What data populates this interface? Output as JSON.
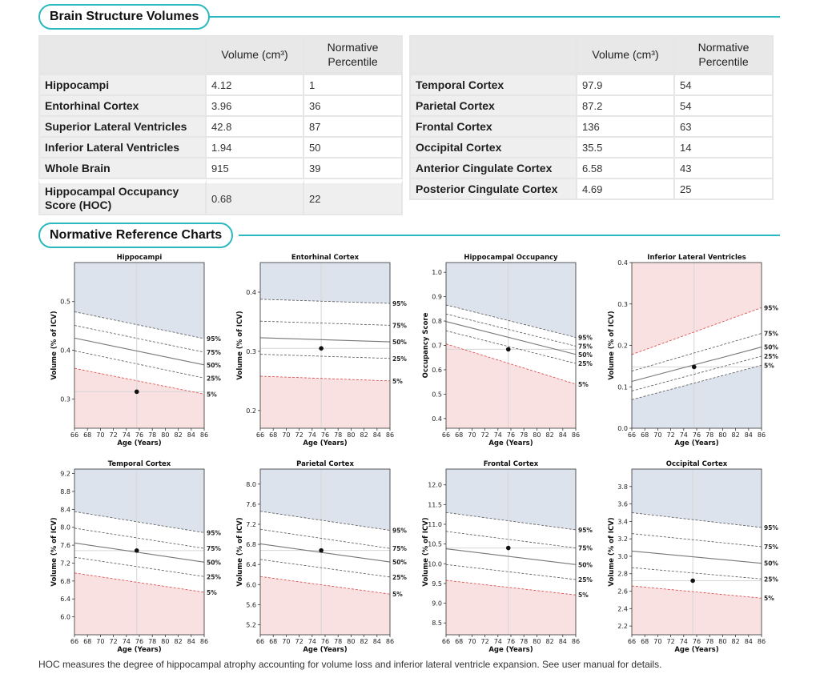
{
  "section1": {
    "title": "Brain Structure Volumes"
  },
  "left_table": {
    "headers": [
      "",
      "Volume (cm³)",
      "Normative Percentile"
    ],
    "rows": [
      {
        "name": "Hippocampi",
        "volume": "4.12",
        "percentile": "1"
      },
      {
        "name": "Entorhinal Cortex",
        "volume": "3.96",
        "percentile": "36"
      },
      {
        "name": "Superior Lateral Ventricles",
        "volume": "42.8",
        "percentile": "87"
      },
      {
        "name": "Inferior Lateral Ventricles",
        "volume": "1.94",
        "percentile": "50"
      },
      {
        "name": "Whole Brain",
        "volume": "915",
        "percentile": "39"
      }
    ],
    "hoc": {
      "name": "Hippocampal Occupancy Score (HOC)",
      "volume": "0.68",
      "percentile": "22"
    }
  },
  "right_table": {
    "headers": [
      "",
      "Volume (cm³)",
      "Normative Percentile"
    ],
    "rows": [
      {
        "name": "Temporal Cortex",
        "volume": "97.9",
        "percentile": "54"
      },
      {
        "name": "Parietal Cortex",
        "volume": "87.2",
        "percentile": "54"
      },
      {
        "name": "Frontal Cortex",
        "volume": "136",
        "percentile": "63"
      },
      {
        "name": "Occipital Cortex",
        "volume": "35.5",
        "percentile": "14"
      },
      {
        "name": "Anterior Cingulate Cortex",
        "volume": "6.58",
        "percentile": "43"
      },
      {
        "name": "Posterior Cingulate Cortex",
        "volume": "4.69",
        "percentile": "25"
      }
    ]
  },
  "section2": {
    "title": "Normative Reference Charts"
  },
  "colors": {
    "accent": "#2bb9c0",
    "blue_zone": "#dde3ed",
    "red_zone": "#f9e1e1",
    "low_percentile": "#b2185b"
  },
  "chart_data": [
    {
      "type": "line",
      "title": "Hippocampi",
      "xlabel": "Age (Years)",
      "ylabel": "Volume (% of ICV)",
      "xlim": [
        66,
        86
      ],
      "ylim": [
        0.24,
        0.58
      ],
      "yticks": [
        0.3,
        0.4,
        0.5
      ],
      "ytick_labels": [
        "0.3",
        "0.4",
        "0.5"
      ],
      "xticks": [
        66,
        68,
        70,
        72,
        74,
        76,
        78,
        80,
        82,
        84,
        86
      ],
      "percentiles": [
        "95%",
        "75%",
        "50%",
        "25%",
        "5%"
      ],
      "p95": [
        0.479,
        0.424
      ],
      "p75": [
        0.451,
        0.396
      ],
      "p50": [
        0.425,
        0.37
      ],
      "p25": [
        0.399,
        0.343
      ],
      "p5": [
        0.363,
        0.31
      ],
      "high_zone": "blue",
      "low_zone": "red",
      "patient": {
        "age": 75.6,
        "value": 0.315
      }
    },
    {
      "type": "line",
      "title": "Entorhinal Cortex",
      "xlabel": "Age (Years)",
      "ylabel": "Volume (% of ICV)",
      "xlim": [
        66,
        86
      ],
      "ylim": [
        0.17,
        0.45
      ],
      "yticks": [
        0.2,
        0.3,
        0.4
      ],
      "ytick_labels": [
        "0.2",
        "0.3",
        "0.4"
      ],
      "xticks": [
        66,
        68,
        70,
        72,
        74,
        76,
        78,
        80,
        82,
        84,
        86
      ],
      "percentiles": [
        "95%",
        "75%",
        "50%",
        "25%",
        "5%"
      ],
      "p95": [
        0.388,
        0.381
      ],
      "p75": [
        0.351,
        0.344
      ],
      "p50": [
        0.323,
        0.316
      ],
      "p25": [
        0.295,
        0.288
      ],
      "p5": [
        0.258,
        0.25
      ],
      "high_zone": "blue",
      "low_zone": "red",
      "patient": {
        "age": 75.4,
        "value": 0.305
      }
    },
    {
      "type": "line",
      "title": "Hippocampal Occupancy",
      "xlabel": "Age (Years)",
      "ylabel": "Occupancy Score",
      "xlim": [
        66,
        86
      ],
      "ylim": [
        0.36,
        1.04
      ],
      "yticks": [
        0.4,
        0.5,
        0.6,
        0.7,
        0.8,
        0.9,
        1.0
      ],
      "ytick_labels": [
        "0.4",
        "0.5",
        "0.6",
        "0.7",
        "0.8",
        "0.9",
        "1.0"
      ],
      "xticks": [
        66,
        68,
        70,
        72,
        74,
        76,
        78,
        80,
        82,
        84,
        86
      ],
      "percentiles": [
        "95%",
        "75%",
        "50%",
        "25%",
        "5%"
      ],
      "p95": [
        0.866,
        0.733
      ],
      "p75": [
        0.829,
        0.697
      ],
      "p50": [
        0.798,
        0.663
      ],
      "p25": [
        0.76,
        0.626
      ],
      "p5": [
        0.706,
        0.541
      ],
      "high_zone": "blue",
      "low_zone": "red",
      "patient": {
        "age": 75.6,
        "value": 0.684
      }
    },
    {
      "type": "line",
      "title": "Inferior Lateral Ventricles",
      "xlabel": "Age (Years)",
      "ylabel": "Volume (% of ICV)",
      "xlim": [
        66,
        86
      ],
      "ylim": [
        0.0,
        0.4
      ],
      "yticks": [
        0.0,
        0.1,
        0.2,
        0.3,
        0.4
      ],
      "ytick_labels": [
        "0.0",
        "0.1",
        "0.2",
        "0.3",
        "0.4"
      ],
      "xticks": [
        66,
        68,
        70,
        72,
        74,
        76,
        78,
        80,
        82,
        84,
        86
      ],
      "percentiles": [
        "95%",
        "75%",
        "50%",
        "25%",
        "5%"
      ],
      "p95": [
        0.178,
        0.291
      ],
      "p75": [
        0.138,
        0.229
      ],
      "p50": [
        0.113,
        0.196
      ],
      "p25": [
        0.09,
        0.174
      ],
      "p5": [
        0.069,
        0.152
      ],
      "high_zone": "red",
      "low_zone": "blue",
      "patient": {
        "age": 75.6,
        "value": 0.148
      }
    },
    {
      "type": "line",
      "title": "Temporal Cortex",
      "xlabel": "Age (Years)",
      "ylabel": "Volume (% of ICV)",
      "xlim": [
        66,
        86
      ],
      "ylim": [
        5.6,
        9.3
      ],
      "yticks": [
        6.0,
        6.4,
        6.8,
        7.2,
        7.6,
        8.0,
        8.4,
        8.8,
        9.2
      ],
      "ytick_labels": [
        "6.0",
        "6.4",
        "6.8",
        "7.2",
        "7.6",
        "8.0",
        "8.4",
        "8.8",
        "9.2"
      ],
      "xticks": [
        66,
        68,
        70,
        72,
        74,
        76,
        78,
        80,
        82,
        84,
        86
      ],
      "percentiles": [
        "95%",
        "75%",
        "50%",
        "25%",
        "5%"
      ],
      "p95": [
        8.35,
        7.88
      ],
      "p75": [
        7.98,
        7.53
      ],
      "p50": [
        7.65,
        7.22
      ],
      "p25": [
        7.33,
        6.9
      ],
      "p5": [
        6.98,
        6.55
      ],
      "high_zone": "blue",
      "low_zone": "red",
      "patient": {
        "age": 75.6,
        "value": 7.48
      }
    },
    {
      "type": "line",
      "title": "Parietal Cortex",
      "xlabel": "Age (Years)",
      "ylabel": "Volume (% of ICV)",
      "xlim": [
        66,
        86
      ],
      "ylim": [
        5.0,
        8.3
      ],
      "yticks": [
        5.2,
        5.6,
        6.0,
        6.4,
        6.8,
        7.2,
        7.6,
        8.0
      ],
      "ytick_labels": [
        "5.2",
        "5.6",
        "6.0",
        "6.4",
        "6.8",
        "7.2",
        "7.6",
        "8.0"
      ],
      "xticks": [
        66,
        68,
        70,
        72,
        74,
        76,
        78,
        80,
        82,
        84,
        86
      ],
      "percentiles": [
        "95%",
        "75%",
        "50%",
        "25%",
        "5%"
      ],
      "p95": [
        7.46,
        7.08
      ],
      "p75": [
        7.1,
        6.72
      ],
      "p50": [
        6.81,
        6.45
      ],
      "p25": [
        6.5,
        6.15
      ],
      "p5": [
        6.16,
        5.81
      ],
      "high_zone": "blue",
      "low_zone": "red",
      "patient": {
        "age": 75.4,
        "value": 6.68
      }
    },
    {
      "type": "line",
      "title": "Frontal Cortex",
      "xlabel": "Age (Years)",
      "ylabel": "Volume (% of ICV)",
      "xlim": [
        66,
        86
      ],
      "ylim": [
        8.2,
        12.4
      ],
      "yticks": [
        8.5,
        9.0,
        9.5,
        10.0,
        10.5,
        11.0,
        11.5,
        12.0
      ],
      "ytick_labels": [
        "8.5",
        "9.0",
        "9.5",
        "10.0",
        "10.5",
        "11.0",
        "11.5",
        "12.0"
      ],
      "xticks": [
        66,
        68,
        70,
        72,
        74,
        76,
        78,
        80,
        82,
        84,
        86
      ],
      "percentiles": [
        "95%",
        "75%",
        "50%",
        "25%",
        "5%"
      ],
      "p95": [
        11.3,
        10.86
      ],
      "p75": [
        10.82,
        10.4
      ],
      "p50": [
        10.38,
        9.98
      ],
      "p25": [
        9.98,
        9.6
      ],
      "p5": [
        9.58,
        9.21
      ],
      "high_zone": "blue",
      "low_zone": "red",
      "patient": {
        "age": 75.6,
        "value": 10.4
      }
    },
    {
      "type": "line",
      "title": "Occipital Cortex",
      "xlabel": "Age (Years)",
      "ylabel": "Volume (% of ICV)",
      "xlim": [
        66,
        86
      ],
      "ylim": [
        2.1,
        4.0
      ],
      "yticks": [
        2.2,
        2.4,
        2.6,
        2.8,
        3.0,
        3.2,
        3.4,
        3.6,
        3.8
      ],
      "ytick_labels": [
        "2.2",
        "2.4",
        "2.6",
        "2.8",
        "3.0",
        "3.2",
        "3.4",
        "3.6",
        "3.8"
      ],
      "xticks": [
        66,
        68,
        70,
        72,
        74,
        76,
        78,
        80,
        82,
        84,
        86
      ],
      "percentiles": [
        "95%",
        "75%",
        "50%",
        "25%",
        "5%"
      ],
      "p95": [
        3.5,
        3.33
      ],
      "p75": [
        3.26,
        3.11
      ],
      "p50": [
        3.06,
        2.92
      ],
      "p25": [
        2.87,
        2.74
      ],
      "p5": [
        2.66,
        2.52
      ],
      "high_zone": "blue",
      "low_zone": "red",
      "patient": {
        "age": 75.4,
        "value": 2.72
      }
    }
  ],
  "footnote": "HOC measures the degree of hippocampal atrophy accounting for volume loss and inferior lateral ventricle expansion. See user manual for details."
}
